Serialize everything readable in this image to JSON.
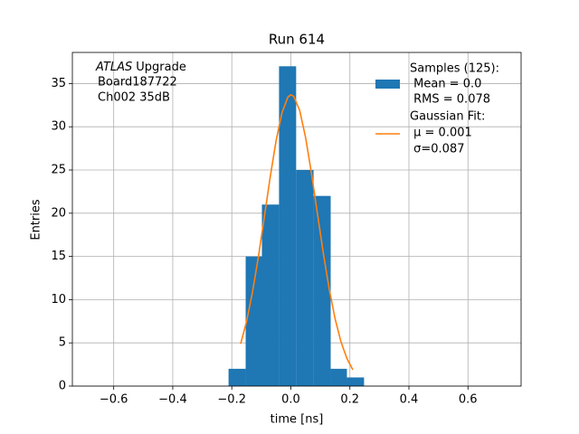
{
  "chart_data": {
    "type": "histogram",
    "title": "Run 614",
    "xlabel": "time [ns]",
    "ylabel": "Entries",
    "annotation": {
      "emphasis": "ATLAS",
      "lines": [
        "Upgrade",
        "Board187722",
        "Ch002 35dB"
      ]
    },
    "histogram": {
      "name": [
        "Samples (125):",
        " Mean = 0.0",
        " RMS = 0.078"
      ],
      "color": "#1f77b4",
      "bins": [
        -0.211,
        -0.153,
        -0.098,
        -0.04,
        0.018,
        0.077,
        0.135,
        0.19,
        0.248
      ],
      "counts": [
        2,
        15,
        21,
        37,
        25,
        22,
        2,
        1
      ]
    },
    "fit": {
      "name": [
        "Gaussian Fit:",
        " μ = 0.001",
        " σ=0.087"
      ],
      "color": "#ff7f0e",
      "x": [
        -0.17,
        -0.15,
        -0.13,
        -0.11,
        -0.09,
        -0.07,
        -0.05,
        -0.03,
        -0.01,
        0,
        0.01,
        0.03,
        0.05,
        0.07,
        0.09,
        0.11,
        0.13,
        0.15,
        0.17,
        0.19,
        0.21
      ],
      "values": [
        4.88,
        7.47,
        10.85,
        14.93,
        19.5,
        24.16,
        28.38,
        31.63,
        33.43,
        33.7,
        33.52,
        31.88,
        28.76,
        24.6,
        19.97,
        15.37,
        11.23,
        7.77,
        5.11,
        3.19,
        1.88
      ]
    },
    "xlim": [
      -0.74,
      0.78
    ],
    "ylim": [
      0,
      38.6
    ],
    "xticks": [
      {
        "value": -0.6,
        "label": "−0.6"
      },
      {
        "value": -0.4,
        "label": "−0.4"
      },
      {
        "value": -0.2,
        "label": "−0.2"
      },
      {
        "value": 0,
        "label": "0.0"
      },
      0.2,
      0.4,
      0.6
    ],
    "yticks": [
      0,
      5,
      10,
      15,
      20,
      25,
      30,
      35
    ],
    "grid": true,
    "legend": "upper right"
  }
}
